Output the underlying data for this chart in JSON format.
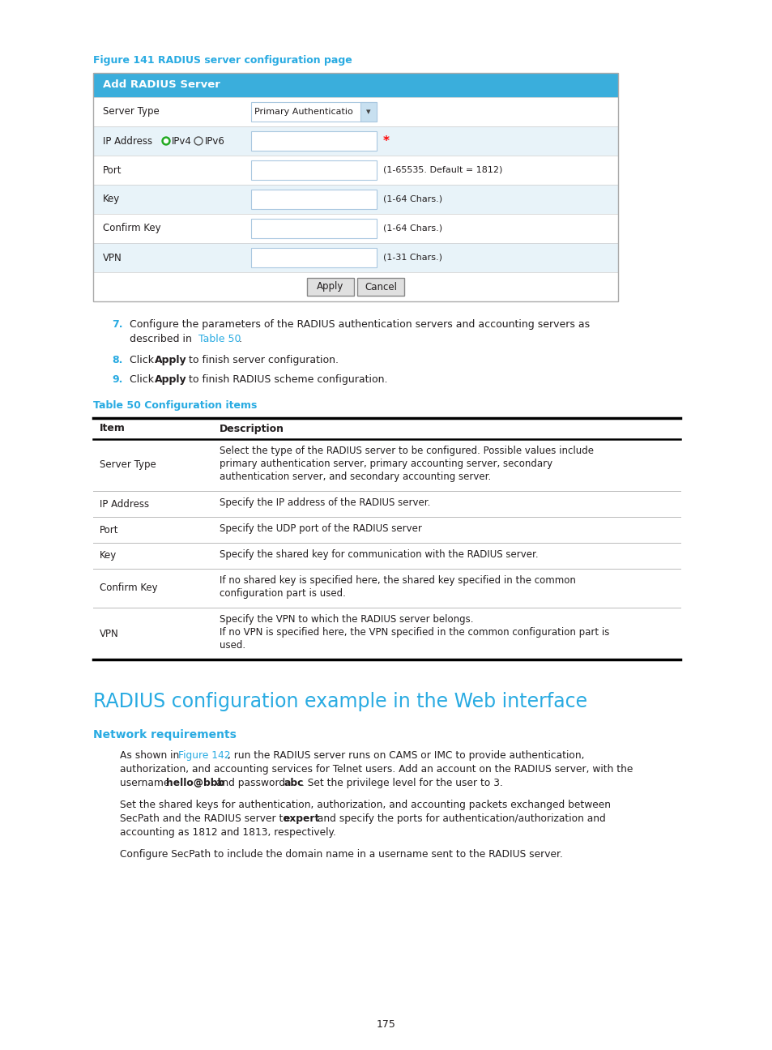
{
  "page_width": 9.54,
  "page_height": 12.96,
  "bg_color": "#ffffff",
  "cyan_color": "#29abe2",
  "text_color": "#231f20",
  "figure_caption": "Figure 141 RADIUS server configuration page",
  "header_bg": "#3aaedc",
  "header_text": "Add RADIUS Server",
  "row_labels": [
    "Server Type",
    "IP Address",
    "Port",
    "Key",
    "Confirm Key",
    "VPN"
  ],
  "row_hints": [
    "",
    "*",
    "(1-65535. Default = 1812)",
    "(1-64 Chars.)",
    "(1-64 Chars.)",
    "(1-31 Chars.)"
  ],
  "row_bgs": [
    "#ffffff",
    "#e8f3f9",
    "#ffffff",
    "#e8f3f9",
    "#ffffff",
    "#e8f3f9"
  ],
  "has_dropdown": [
    true,
    false,
    false,
    false,
    false,
    false
  ],
  "dropdown_text": "Primary Authenticatio",
  "table_caption": "Table 50 Configuration items",
  "table_col1_header": "Item",
  "table_col2_header": "Description",
  "table_items": [
    "Server Type",
    "IP Address",
    "Port",
    "Key",
    "Confirm Key",
    "VPN"
  ],
  "table_descs": [
    "Select the type of the RADIUS server to be configured. Possible values include\nprimary authentication server, primary accounting server, secondary\nauthentication server, and secondary accounting server.",
    "Specify the IP address of the RADIUS server.",
    "Specify the UDP port of the RADIUS server",
    "Specify the shared key for communication with the RADIUS server.",
    "If no shared key is specified here, the shared key specified in the common\nconfiguration part is used.",
    "Specify the VPN to which the RADIUS server belongs.\nIf no VPN is specified here, the VPN specified in the common configuration part is\nused."
  ],
  "section_title": "RADIUS configuration example in the Web interface",
  "subsection_title": "Network requirements",
  "page_num": "175"
}
